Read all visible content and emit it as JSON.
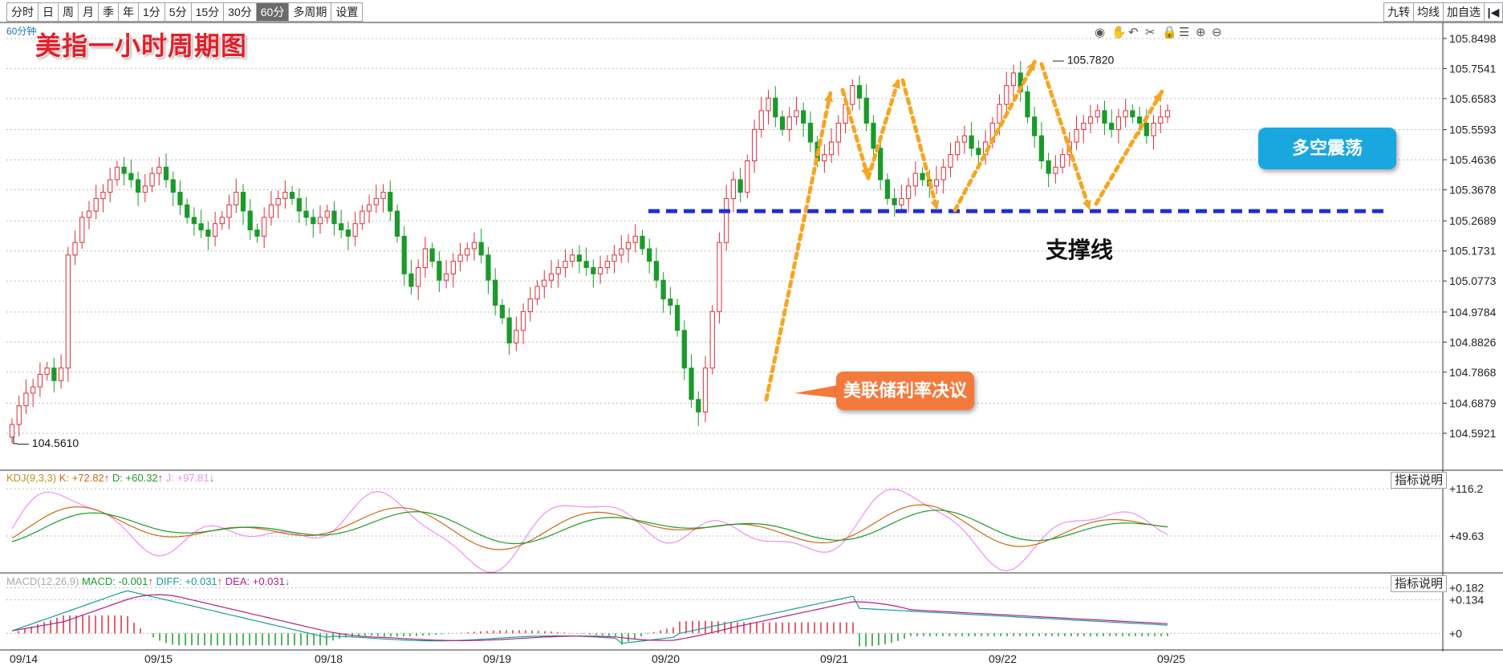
{
  "toolbar": {
    "periods": [
      "分时",
      "日",
      "周",
      "月",
      "季",
      "年",
      "1分",
      "5分",
      "15分",
      "30分",
      "60分",
      "多周期",
      "设置"
    ],
    "active": "60分"
  },
  "right_tools": {
    "jiuzhuan": "九转",
    "junxian": "均线",
    "jiazixuan": "加自选"
  },
  "period_label": "60分钟",
  "title": "美指一小时周期图",
  "indicator_button": "指标说明",
  "kdj": {
    "name": "KDJ(9,3,3)",
    "k": "K: +72.82",
    "d": "D: +60.32",
    "j": "J: +97.81",
    "colors": {
      "name": "#c58a2a",
      "k": "#c86a16",
      "d": "#1a9a2a",
      "j": "#f08ef0"
    }
  },
  "macd": {
    "name": "MACD(12,26,9)",
    "macd": "MACD: -0.001",
    "diff": "DIFF: +0.031",
    "dea": "DEA: +0.031",
    "colors": {
      "name": "#aaaaaa",
      "macd": "#1a9a2a",
      "diff": "#1a9a9a",
      "dea": "#b0208a"
    }
  },
  "callouts": {
    "fed": "美联储利率决议",
    "range": "多空震荡"
  },
  "annotations": {
    "support": "支撑线"
  },
  "colors": {
    "up": "#d9303a",
    "down": "#1b9a2b",
    "support": "#1f2fd0",
    "arrows": "#f5a623",
    "fed_callout": "#f47a3c",
    "range_callout": "#1aa7e0",
    "title": "#e0202a"
  },
  "chart_data": {
    "type": "candlestick",
    "xlabels": [
      "09/14",
      "09/15",
      "09/18",
      "09/19",
      "09/20",
      "09/21",
      "09/22",
      "09/25"
    ],
    "y_ticks": [
      "105.8498",
      "105.7541",
      "105.6583",
      "105.5593",
      "105.4636",
      "105.3678",
      "105.2689",
      "105.1731",
      "105.0773",
      "104.9784",
      "104.8826",
      "104.7868",
      "104.6879",
      "104.5921"
    ],
    "ylim": [
      104.5921,
      105.8498
    ],
    "high_label": "105.7820",
    "low_label": "104.5610",
    "support_level": 105.3,
    "candles_close": [
      104.62,
      104.68,
      104.72,
      104.74,
      104.78,
      104.8,
      104.76,
      104.8,
      105.16,
      105.2,
      105.28,
      105.3,
      105.34,
      105.36,
      105.4,
      105.44,
      105.42,
      105.4,
      105.36,
      105.38,
      105.42,
      105.44,
      105.4,
      105.36,
      105.32,
      105.28,
      105.26,
      105.24,
      105.22,
      105.26,
      105.28,
      105.32,
      105.36,
      105.3,
      105.24,
      105.22,
      105.28,
      105.32,
      105.34,
      105.36,
      105.34,
      105.3,
      105.28,
      105.26,
      105.28,
      105.3,
      105.26,
      105.24,
      105.22,
      105.26,
      105.3,
      105.32,
      105.34,
      105.36,
      105.3,
      105.22,
      105.1,
      105.06,
      105.12,
      105.18,
      105.14,
      105.08,
      105.1,
      105.14,
      105.16,
      105.18,
      105.2,
      105.16,
      105.08,
      105.0,
      104.96,
      104.88,
      104.92,
      104.98,
      105.02,
      105.06,
      105.08,
      105.1,
      105.12,
      105.14,
      105.16,
      105.14,
      105.12,
      105.1,
      105.12,
      105.14,
      105.16,
      105.18,
      105.2,
      105.22,
      105.18,
      105.14,
      105.08,
      105.02,
      105.0,
      104.92,
      104.8,
      104.7,
      104.66,
      104.8,
      104.98,
      105.2,
      105.34,
      105.4,
      105.36,
      105.46,
      105.56,
      105.62,
      105.66,
      105.6,
      105.56,
      105.6,
      105.62,
      105.58,
      105.52,
      105.46,
      105.48,
      105.52,
      105.58,
      105.64,
      105.7,
      105.66,
      105.58,
      105.5,
      105.4,
      105.34,
      105.32,
      105.34,
      105.38,
      105.42,
      105.4,
      105.38,
      105.4,
      105.44,
      105.48,
      105.52,
      105.54,
      105.5,
      105.48,
      105.52,
      105.58,
      105.64,
      105.7,
      105.74,
      105.68,
      105.6,
      105.54,
      105.46,
      105.42,
      105.44,
      105.48,
      105.52,
      105.56,
      105.58,
      105.6,
      105.62,
      105.58,
      105.56,
      105.6,
      105.62,
      105.6,
      105.58,
      105.54,
      105.58,
      105.6,
      105.62
    ]
  },
  "kdj_data": {
    "ylim": [
      0,
      140
    ],
    "ticks": [
      "+116.2",
      "+49.63"
    ]
  },
  "macd_data": {
    "ylim": [
      -0.06,
      0.2
    ],
    "ticks": [
      "+0.182",
      "+0.134",
      "+0"
    ]
  }
}
